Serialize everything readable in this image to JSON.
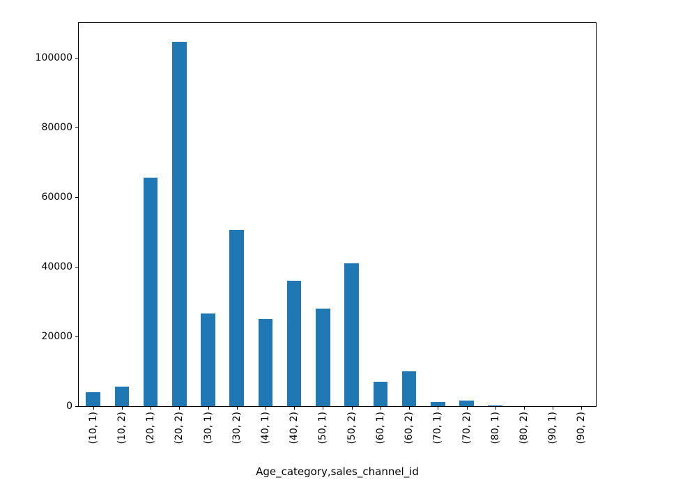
{
  "chart_data": {
    "type": "bar",
    "title": "",
    "xlabel": "Age_category,sales_channel_id",
    "ylabel": "",
    "categories": [
      "(10, 1)",
      "(10, 2)",
      "(20, 1)",
      "(20, 2)",
      "(30, 1)",
      "(30, 2)",
      "(40, 1)",
      "(40, 2)",
      "(50, 1)",
      "(50, 2)",
      "(60, 1)",
      "(60, 2)",
      "(70, 1)",
      "(70, 2)",
      "(80, 1)",
      "(80, 2)",
      "(90, 1)",
      "(90, 2)"
    ],
    "values": [
      4000,
      5500,
      65500,
      104500,
      26500,
      50500,
      25000,
      36000,
      28000,
      41000,
      7000,
      10000,
      1200,
      1500,
      150,
      80,
      30,
      15
    ],
    "yticks": [
      0,
      20000,
      40000,
      60000,
      80000,
      100000
    ],
    "ylim": [
      0,
      110000
    ],
    "bar_color": "#1f77b4",
    "bar_width_ratio": 0.5,
    "grid": false
  }
}
